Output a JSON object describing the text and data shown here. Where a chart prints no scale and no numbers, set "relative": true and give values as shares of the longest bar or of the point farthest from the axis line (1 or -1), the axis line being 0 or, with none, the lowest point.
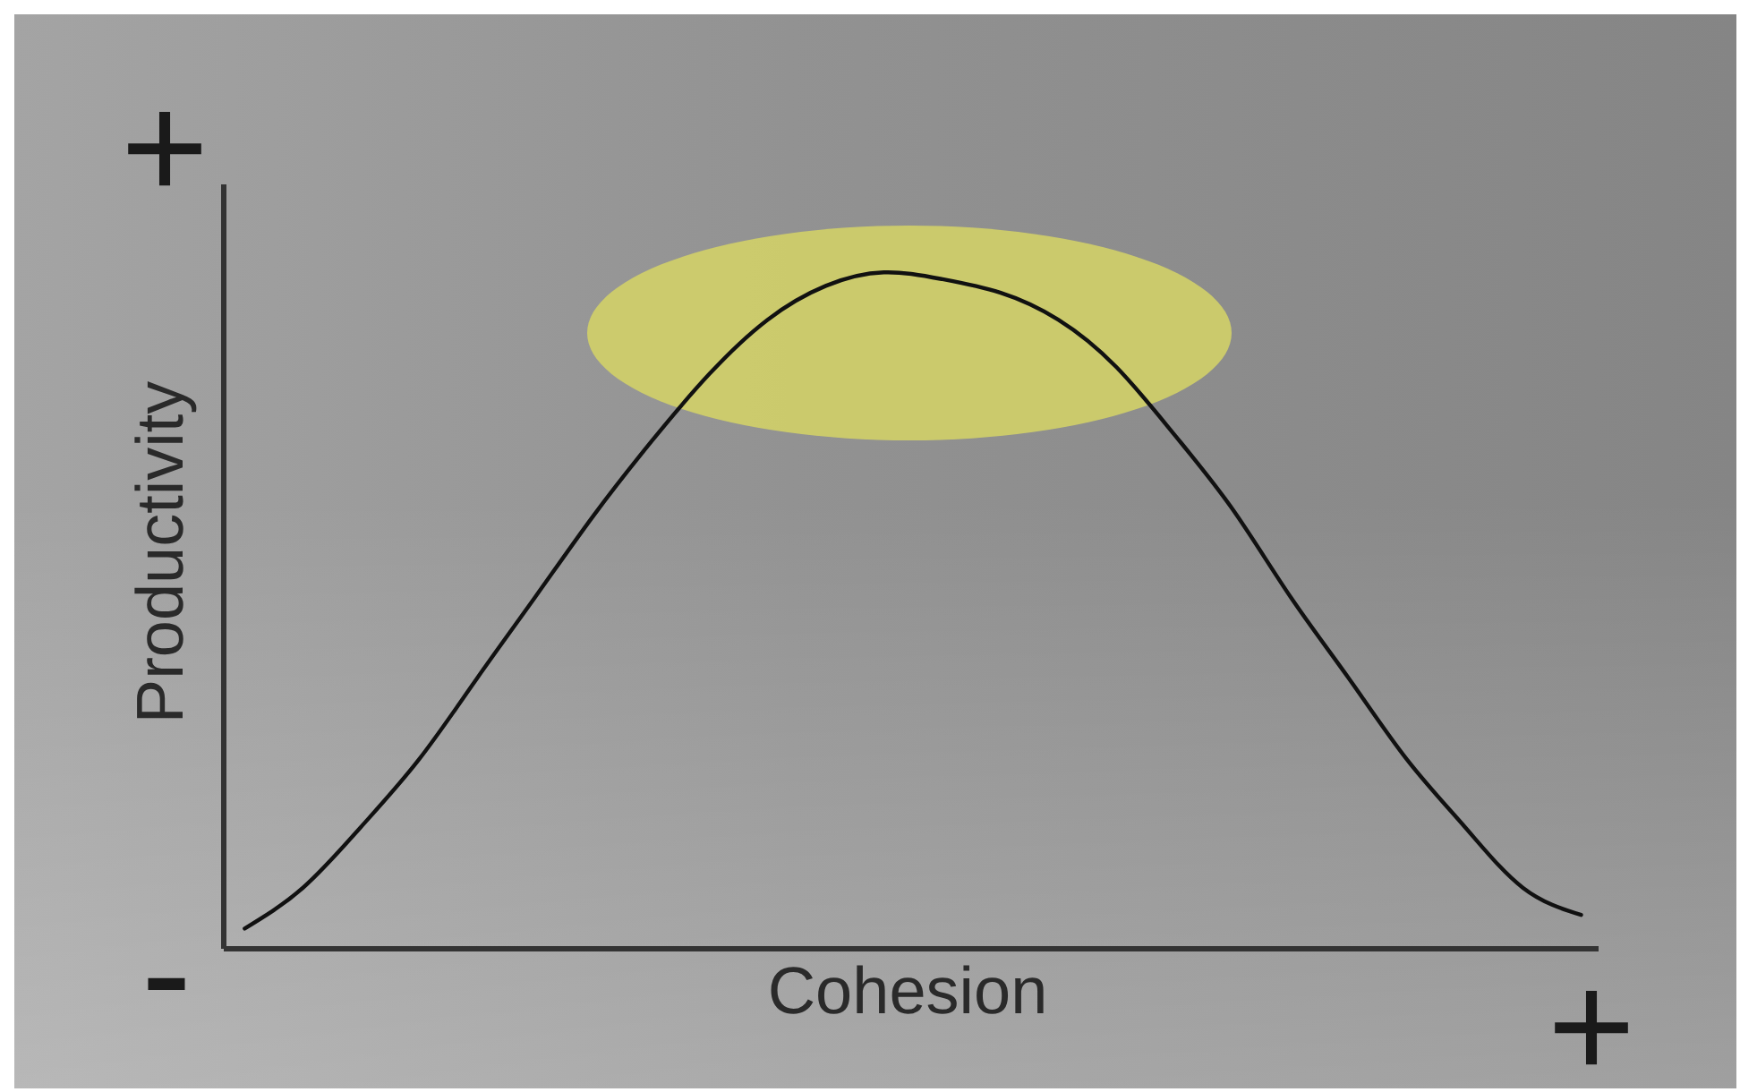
{
  "chart_data": {
    "type": "line",
    "xlabel": "Cohesion",
    "ylabel": "Productivity",
    "categories": [
      null,
      null,
      null,
      null,
      null,
      null,
      null,
      null,
      null,
      null,
      null,
      null,
      null,
      null,
      null,
      null,
      null,
      null,
      null,
      null,
      null,
      null,
      null,
      null
    ],
    "values": [
      0.03,
      0.09,
      0.18,
      0.28,
      0.4,
      0.52,
      0.64,
      0.75,
      0.85,
      0.93,
      0.98,
      1,
      0.99,
      0.97,
      0.93,
      0.86,
      0.76,
      0.65,
      0.52,
      0.4,
      0.28,
      0.18,
      0.09,
      0.05
    ],
    "color": "#111111",
    "relative": true,
    "marker": "none",
    "line_style": "solid",
    "annotations": [
      "+",
      "-",
      "+"
    ]
  }
}
